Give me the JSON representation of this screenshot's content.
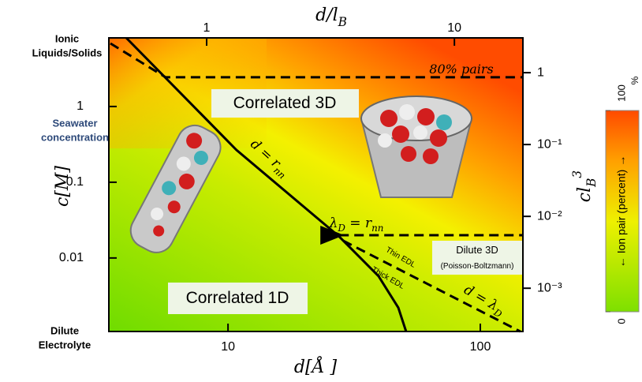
{
  "chart_data": {
    "type": "line",
    "x_label": [
      "d[Å ]"
    ],
    "y_label": [
      "c[M]"
    ],
    "x2_label": [
      "d/l",
      "B"
    ],
    "y2_label": [
      "cl",
      "B",
      "3"
    ],
    "xscale": "log",
    "yscale": "log",
    "xlim": [
      3.37,
      147.5
    ],
    "xticks": [
      10,
      100
    ],
    "ylim": [
      0.00107,
      8.05
    ],
    "yticks": [
      0.01,
      0.1,
      1
    ],
    "x2lim": [
      0.403,
      18.9
    ],
    "x2ticks": [
      1,
      10
    ],
    "y2lim": [
      0.00025,
      3.05
    ],
    "y2ticks": [
      {
        "value": 0.001,
        "label": "10⁻³"
      },
      {
        "value": 0.01,
        "label": "10⁻²"
      },
      {
        "value": 0.1,
        "label": "10⁻¹"
      },
      1
    ],
    "series": [
      {
        "x": [
          3.95,
          10.8,
          27.6,
          39.5,
          47.3,
          50.8
        ],
        "values": [
          8.05,
          0.267,
          0.0191,
          0.00575,
          0.00221,
          0.00107
        ],
        "color": "#000000",
        "dashed": false
      },
      {
        "x": [
          3.42,
          5.66,
          147.5
        ],
        "values": [
          6.81,
          2.43,
          2.43
        ],
        "color": "#000000",
        "dashed": true
      },
      {
        "x": [
          27.6,
          147.5
        ],
        "values": [
          0.02,
          0.02
        ],
        "color": "#000000",
        "dashed": true,
        "arrow": true
      },
      {
        "x": [
          28.6,
          144
        ],
        "values": [
          0.0169,
          0.00107
        ],
        "color": "#000000",
        "dashed": true
      }
    ],
    "annotations": [
      {
        "parts": [
          "80% pairs"
        ]
      },
      {
        "parts": [
          "Correlated 3D"
        ]
      },
      {
        "parts": [
          "Correlated 1D"
        ]
      },
      {
        "parts": [
          "Dilute 3D"
        ]
      },
      {
        "parts": [
          "(Poisson-Boltzmann)"
        ]
      },
      {
        "parts": [
          "d = r",
          "nn"
        ]
      },
      {
        "parts": [
          "λ",
          "D",
          " = r",
          "nn"
        ]
      },
      {
        "parts": [
          "Thin EDL"
        ]
      },
      {
        "parts": [
          "Thick EDL"
        ]
      },
      {
        "parts": [
          "d = λ",
          "D"
        ]
      }
    ],
    "side_labels": [
      {
        "lines": [
          "Ionic",
          "Liquids/Solids"
        ],
        "color": "#000000"
      },
      {
        "lines": [
          "Seawater",
          "concentration"
        ],
        "color": "#2e4a7a"
      },
      {
        "lines": [
          "Dilute",
          "Electrolyte"
        ],
        "color": "#000000"
      }
    ],
    "colorbar": {
      "min": 0,
      "max": 100,
      "ticks": [
        0,
        100
      ],
      "unit": "%",
      "label": "← Ion pair (percent) →"
    }
  }
}
